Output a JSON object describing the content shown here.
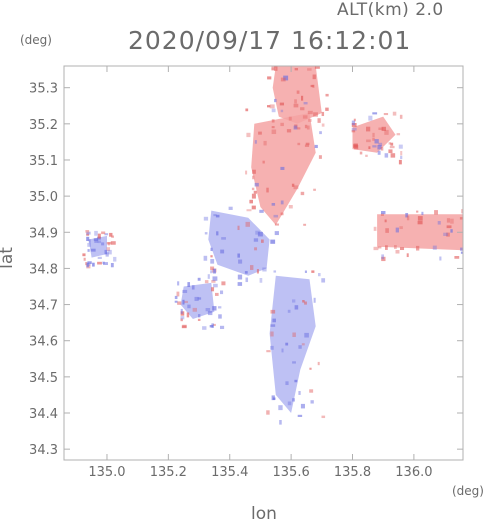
{
  "header": {
    "alt_label": "ALT(km)  2.0",
    "timestamp": "2020/09/17 16:12:01"
  },
  "chart_data": {
    "type": "heatmap",
    "title": "2020/09/17 16:12:01",
    "subtitle": "ALT(km)  2.0",
    "xlabel": "lon",
    "ylabel": "lat",
    "x_unit": "(deg)",
    "y_unit": "(deg)",
    "xlim": [
      134.86,
      136.16
    ],
    "ylim": [
      34.27,
      35.36
    ],
    "xticks": [
      "135.0",
      "135.2",
      "135.4",
      "135.6",
      "135.8",
      "136.0"
    ],
    "xtick_values": [
      135.0,
      135.2,
      135.4,
      135.6,
      135.8,
      136.0
    ],
    "yticks": [
      "34.3",
      "34.4",
      "34.5",
      "34.6",
      "34.7",
      "34.8",
      "34.9",
      "35.0",
      "35.1",
      "35.2",
      "35.3"
    ],
    "ytick_values": [
      34.3,
      34.4,
      34.5,
      34.6,
      34.7,
      34.8,
      34.9,
      35.0,
      35.1,
      35.2,
      35.3
    ],
    "grid": false,
    "colors": {
      "positive": "#f4a3a3",
      "negative": "#b3b6f2",
      "frame": "#b0b0b0",
      "text": "#6b6b6b"
    },
    "regions": [
      {
        "name": "north-receding-cell",
        "sign": "positive",
        "lon": [
          135.55,
          135.68,
          135.7,
          135.62,
          135.56,
          135.54
        ],
        "lat": [
          35.36,
          35.36,
          35.23,
          35.2,
          35.22,
          35.3
        ]
      },
      {
        "name": "central-receding-band",
        "sign": "positive",
        "lon": [
          135.48,
          135.66,
          135.68,
          135.62,
          135.55,
          135.5,
          135.47
        ],
        "lat": [
          35.2,
          35.23,
          35.12,
          35.02,
          34.92,
          34.97,
          35.08
        ]
      },
      {
        "name": "northeast-receding-cell",
        "sign": "positive",
        "lon": [
          135.8,
          135.9,
          135.94,
          135.88,
          135.8
        ],
        "lat": [
          35.19,
          35.22,
          35.17,
          35.12,
          35.13
        ]
      },
      {
        "name": "east-receding-band",
        "sign": "positive",
        "lon": [
          135.88,
          136.16,
          136.16,
          135.88
        ],
        "lat": [
          34.95,
          34.95,
          34.85,
          34.86
        ]
      },
      {
        "name": "west-approaching-area",
        "sign": "negative",
        "lon": [
          135.34,
          135.46,
          135.53,
          135.52,
          135.46,
          135.36,
          135.33
        ],
        "lat": [
          34.96,
          34.94,
          34.88,
          34.8,
          34.78,
          34.81,
          34.88
        ]
      },
      {
        "name": "south-approaching-cluster",
        "sign": "negative",
        "lon": [
          135.55,
          135.66,
          135.68,
          135.63,
          135.6,
          135.55,
          135.53
        ],
        "lat": [
          34.78,
          34.77,
          34.64,
          34.52,
          34.4,
          34.45,
          34.62
        ]
      },
      {
        "name": "far-west-approaching-patch",
        "sign": "negative",
        "lon": [
          134.94,
          135.0,
          135.0,
          134.95
        ],
        "lat": [
          34.88,
          34.89,
          34.84,
          34.83
        ]
      },
      {
        "name": "osaka-approaching-patch",
        "sign": "negative",
        "lon": [
          135.25,
          135.34,
          135.35,
          135.28,
          135.24
        ],
        "lat": [
          34.75,
          34.76,
          34.68,
          34.66,
          34.7
        ]
      }
    ]
  }
}
